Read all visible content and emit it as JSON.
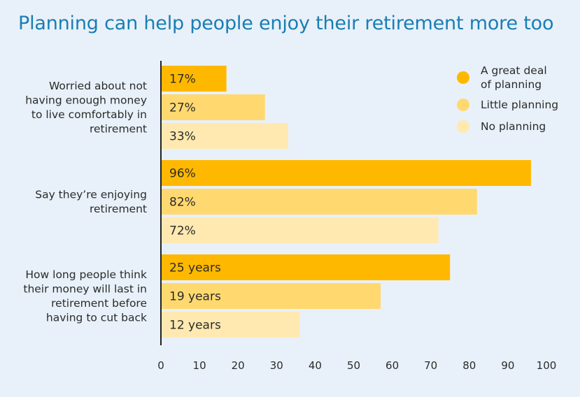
{
  "title": "Planning can help people enjoy their retirement more too",
  "chart_data": {
    "type": "bar",
    "orientation": "horizontal",
    "title": "Planning can help people enjoy their retirement more too",
    "categories": [
      [
        "Worried about not",
        "having enough money",
        "to live comfortably in",
        "retirement"
      ],
      [
        "Say they’re enjoying",
        "retirement"
      ],
      [
        "How long people think",
        "their money will last in",
        "retirement before",
        "having to cut back"
      ]
    ],
    "series": [
      {
        "name": "A great deal of planning",
        "legend_lines": [
          "A great deal",
          "of planning"
        ],
        "color": "#ffb800",
        "values": [
          17,
          96,
          25
        ],
        "labels": [
          "17%",
          "96%",
          "25 years"
        ]
      },
      {
        "name": "Little planning",
        "legend_lines": [
          "Little planning"
        ],
        "color": "#ffd970",
        "values": [
          27,
          82,
          19
        ],
        "labels": [
          "27%",
          "82%",
          "19 years"
        ]
      },
      {
        "name": "No planning",
        "legend_lines": [
          "No planning"
        ],
        "color": "#ffe9b0",
        "values": [
          33,
          72,
          12
        ],
        "labels": [
          "33%",
          "72%",
          "12 years"
        ]
      }
    ],
    "bar_lengths_in_axis_units": [
      [
        17,
        27,
        33
      ],
      [
        96,
        82,
        72
      ],
      [
        75,
        57,
        36
      ]
    ],
    "xlim": [
      0,
      100
    ],
    "xticks": [
      0,
      10,
      20,
      30,
      40,
      50,
      60,
      70,
      80,
      90,
      100
    ],
    "grid": false,
    "legend": "top-right"
  }
}
